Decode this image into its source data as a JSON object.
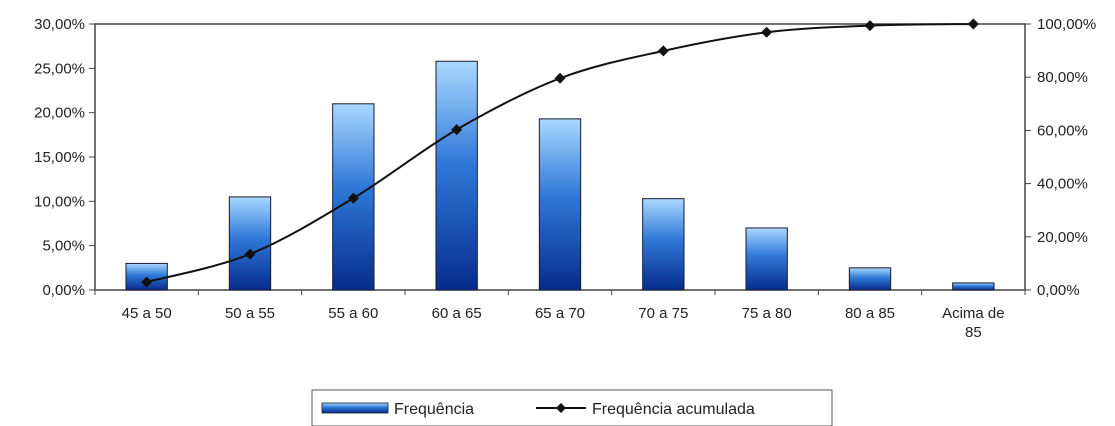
{
  "chart_data": {
    "type": "bar",
    "categories": [
      "45 a 50",
      "50 a 55",
      "55 a 60",
      "60 a 65",
      "65 a 70",
      "70 a 75",
      "75 a 80",
      "80 a 85",
      "Acima de 85"
    ],
    "series": [
      {
        "name": "Frequência",
        "type": "bar",
        "axis": "left",
        "values": [
          0.03,
          0.105,
          0.21,
          0.258,
          0.193,
          0.103,
          0.07,
          0.025,
          0.008
        ]
      },
      {
        "name": "Frequência acumulada",
        "type": "line",
        "axis": "right",
        "values": [
          0.03,
          0.135,
          0.345,
          0.603,
          0.796,
          0.899,
          0.969,
          0.994,
          1.0
        ]
      }
    ],
    "y_left": {
      "ylim": [
        0,
        0.3
      ],
      "ticks": [
        0,
        0.05,
        0.1,
        0.15,
        0.2,
        0.25,
        0.3
      ],
      "tick_labels": [
        "0,00%",
        "5,00%",
        "10,00%",
        "15,00%",
        "20,00%",
        "25,00%",
        "30,00%"
      ]
    },
    "y_right": {
      "ylim": [
        0,
        1.0
      ],
      "ticks": [
        0,
        0.2,
        0.4,
        0.6,
        0.8,
        1.0
      ],
      "tick_labels": [
        "0,00%",
        "20,00%",
        "40,00%",
        "60,00%",
        "80,00%",
        "100,00%"
      ]
    },
    "legend": {
      "placement": "bottom",
      "entries": [
        "Frequência",
        "Frequência acumulada"
      ]
    },
    "grid": false,
    "colors": {
      "bar_top": "#a9d8ff",
      "bar_mid": "#2f78d8",
      "bar_bottom": "#062c8c",
      "bar_stroke": "#1a1a2e",
      "line": "#111111",
      "axis": "#444444"
    }
  }
}
